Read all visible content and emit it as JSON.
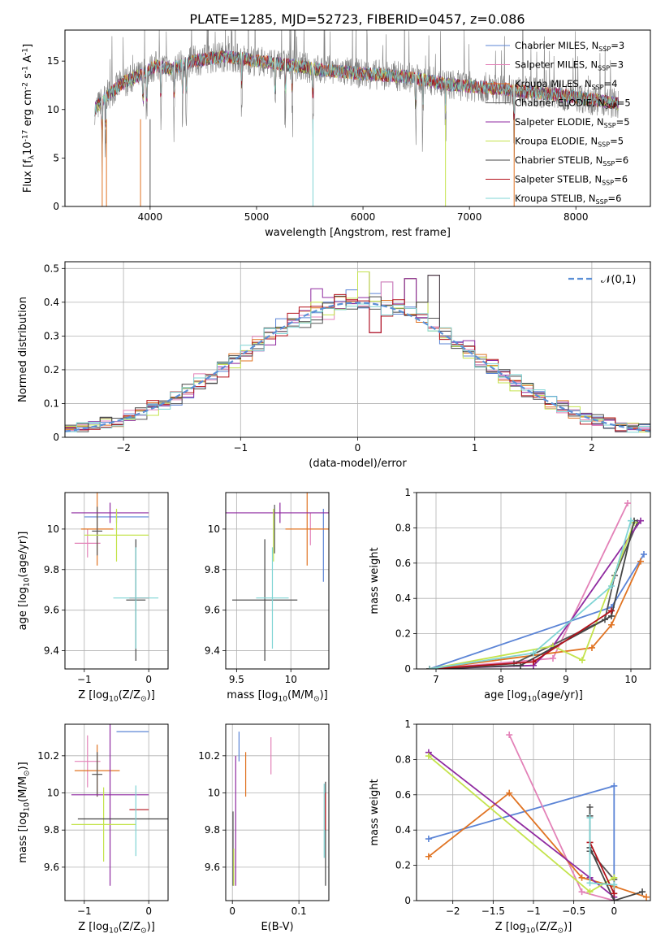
{
  "figure_title": "PLATE=1285, MJD=52723, FIBERID=0457, z=0.086",
  "models": [
    {
      "name": "Chabrier MILES, N$_{SSP}$=3",
      "color": "#5b84d6"
    },
    {
      "name": "Salpeter MILES, N$_{SSP}$=3",
      "color": "#e382b8"
    },
    {
      "name": "Kroupa MILES, N$_{SSP}$=4",
      "color": "#e07322"
    },
    {
      "name": "Chabrier ELODIE, N$_{SSP}$=5",
      "color": "#555555"
    },
    {
      "name": "Salpeter ELODIE, N$_{SSP}$=5",
      "color": "#8f2aa0"
    },
    {
      "name": "Kroupa ELODIE, N$_{SSP}$=5",
      "color": "#c4e34c"
    },
    {
      "name": "Chabrier STELIB, N$_{SSP}$=6",
      "color": "#444444"
    },
    {
      "name": "Salpeter STELIB, N$_{SSP}$=6",
      "color": "#b3121b"
    },
    {
      "name": "Kroupa STELIB, N$_{SSP}$=6",
      "color": "#7fd4d4"
    }
  ],
  "chart_data": [
    {
      "id": "spectrum",
      "type": "line",
      "xlabel": "wavelength [Angstrom, rest frame]",
      "ylabel": "Flux [f_λ10^{-17} erg cm^{-2} s^{-1} A^{-1}]",
      "xlim": [
        3200,
        8700
      ],
      "ylim": [
        0,
        18.2
      ],
      "xticks": [
        4000,
        5000,
        6000,
        7000,
        8000
      ],
      "yticks": [
        0,
        5,
        10,
        15
      ],
      "grid": false,
      "legend": "top-right",
      "data_color": "#808080",
      "continuum": {
        "x": [
          3480,
          3600,
          3750,
          3900,
          4050,
          4200,
          4400,
          4700,
          5000,
          5300,
          5600,
          6000,
          6400,
          6800,
          7200,
          7600,
          8000,
          8400
        ],
        "y": [
          10,
          11.5,
          12.8,
          13.5,
          14.5,
          14.2,
          15.0,
          15.5,
          15.0,
          14.6,
          14.1,
          13.7,
          13.4,
          12.6,
          12.2,
          11.8,
          11.3,
          10.6
        ]
      },
      "absorption_lines": [
        3550,
        3581,
        3934,
        3968,
        4102,
        4226,
        4304,
        4340,
        4861,
        5175,
        5270,
        5335,
        5530,
        6496,
        6563,
        6775,
        7420
      ]
    },
    {
      "id": "residuals",
      "type": "histogram",
      "xlabel": "(data-model)/error",
      "ylabel": "Normed distribution",
      "xlim": [
        -2.5,
        2.5
      ],
      "ylim": [
        0,
        0.52
      ],
      "xticks": [
        -2,
        -1,
        0,
        1,
        2
      ],
      "yticks": [
        0,
        0.1,
        0.2,
        0.3,
        0.4,
        0.5
      ],
      "grid": true,
      "legend": "top-right",
      "reference_label": "$\\mathcal{N}(0,1)$",
      "reference_color": "#5b8fd6",
      "bin_edges_start": -2.5,
      "bin_width": 0.1,
      "spikes": {
        "-0.4": 0.44,
        "0.0": 0.49,
        "0.1": 0.31,
        "0.2": 0.46,
        "0.4": 0.47,
        "0.5": 0.4,
        "0.6": 0.48
      }
    },
    {
      "id": "age-vs-Z",
      "type": "errorbar",
      "xlabel": "Z [log$_{10}$(Z/Z$_\\odot$)]",
      "ylabel": "age  [log$_{10}$(age/yr)]",
      "xlim": [
        -1.3,
        0.3
      ],
      "ylim": [
        9.31,
        10.18
      ],
      "xticks": [
        -1,
        0
      ],
      "yticks": [
        9.4,
        9.6,
        9.8,
        10.0
      ],
      "grid": true,
      "points": [
        {
          "model": 0,
          "x": -0.5,
          "xerr": 0.5,
          "y": 10.06,
          "yerr": 0.03
        },
        {
          "model": 1,
          "x": -0.95,
          "xerr": 0.2,
          "y": 9.93,
          "yerr": 0.07
        },
        {
          "model": 2,
          "x": -0.8,
          "xerr": 0.25,
          "y": 10.0,
          "yerr": 0.18
        },
        {
          "model": 3,
          "x": -0.8,
          "xerr": 0.08,
          "y": 9.99,
          "yerr": 0.12
        },
        {
          "model": 4,
          "x": -0.6,
          "xerr": 0.6,
          "y": 10.08,
          "yerr": 0.05
        },
        {
          "model": 5,
          "x": -0.5,
          "xerr": 0.5,
          "y": 9.97,
          "yerr": 0.13
        },
        {
          "model": 6,
          "x": -0.2,
          "xerr": 0.15,
          "y": 9.65,
          "yerr": 0.3
        },
        {
          "model": 7,
          "x": -0.15,
          "xerr": 0.15,
          "y": 9.66,
          "yerr": 0.0
        },
        {
          "model": 8,
          "x": -0.2,
          "xerr": 0.35,
          "y": 9.66,
          "yerr": 0.25
        }
      ]
    },
    {
      "id": "age-vs-mass",
      "type": "errorbar",
      "xlabel": "mass [log$_{10}$(M/M$_\\odot$)]",
      "ylabel": "",
      "xlim": [
        9.4,
        10.35
      ],
      "ylim": [
        9.31,
        10.18
      ],
      "xticks": [
        9.5,
        10.0
      ],
      "yticks": [
        9.4,
        9.6,
        9.8,
        10.0
      ],
      "grid": true,
      "points": [
        {
          "model": 0,
          "x": 10.3,
          "xerr": 0.0,
          "y": 9.92,
          "yerr": 0.18
        },
        {
          "model": 1,
          "x": 10.18,
          "xerr": 0.0,
          "y": 10.0,
          "yerr": 0.08
        },
        {
          "model": 2,
          "x": 10.15,
          "xerr": 0.2,
          "y": 10.0,
          "yerr": 0.18
        },
        {
          "model": 3,
          "x": 9.85,
          "xerr": 0.0,
          "y": 10.0,
          "yerr": 0.12
        },
        {
          "model": 4,
          "x": 9.9,
          "xerr": 0.5,
          "y": 10.08,
          "yerr": 0.05
        },
        {
          "model": 5,
          "x": 9.84,
          "xerr": 0.0,
          "y": 9.97,
          "yerr": 0.13
        },
        {
          "model": 6,
          "x": 9.76,
          "xerr": 0.3,
          "y": 9.65,
          "yerr": 0.3
        },
        {
          "model": 7,
          "x": 9.91,
          "xerr": 0.0,
          "y": 9.66,
          "yerr": 0.0
        },
        {
          "model": 8,
          "x": 9.83,
          "xerr": 0.15,
          "y": 9.66,
          "yerr": 0.25
        }
      ]
    },
    {
      "id": "weight-vs-age",
      "type": "line",
      "xlabel": "age  [log$_{10}$(age/yr)]",
      "ylabel": "mass weight",
      "xlim": [
        6.7,
        10.3
      ],
      "ylim": [
        0,
        1.0
      ],
      "xticks": [
        7,
        8,
        9,
        10
      ],
      "yticks": [
        0.0,
        0.2,
        0.4,
        0.6,
        0.8,
        1.0
      ],
      "grid": true,
      "series": [
        {
          "model": 0,
          "x": [
            6.9,
            9.7,
            10.2
          ],
          "y": [
            0.0,
            0.35,
            0.65
          ]
        },
        {
          "model": 1,
          "x": [
            6.9,
            8.8,
            9.95
          ],
          "y": [
            0.0,
            0.06,
            0.94
          ]
        },
        {
          "model": 2,
          "x": [
            6.9,
            9.4,
            9.7,
            10.15
          ],
          "y": [
            0.0,
            0.12,
            0.25,
            0.61
          ]
        },
        {
          "model": 3,
          "x": [
            6.9,
            8.2,
            9.6,
            9.75,
            10.1
          ],
          "y": [
            0.0,
            0.03,
            0.28,
            0.53,
            0.83
          ]
        },
        {
          "model": 4,
          "x": [
            6.9,
            8.5,
            8.8,
            10.15
          ],
          "y": [
            0.0,
            0.02,
            0.13,
            0.84
          ]
        },
        {
          "model": 5,
          "x": [
            6.9,
            8.8,
            9.25,
            10.05
          ],
          "y": [
            0.0,
            0.13,
            0.05,
            0.83
          ]
        },
        {
          "model": 6,
          "x": [
            6.9,
            8.3,
            9.7,
            10.05
          ],
          "y": [
            0.0,
            0.02,
            0.3,
            0.84
          ]
        },
        {
          "model": 7,
          "x": [
            6.9,
            8.5,
            9.7
          ],
          "y": [
            0.0,
            0.04,
            0.33
          ]
        },
        {
          "model": 8,
          "x": [
            6.9,
            8.5,
            9.7,
            10.0
          ],
          "y": [
            0.0,
            0.09,
            0.47,
            0.84
          ]
        }
      ]
    },
    {
      "id": "mass-vs-Z",
      "type": "errorbar",
      "xlabel": "Z [log$_{10}$(Z/Z$_\\odot$)]",
      "ylabel": "mass [log$_{10}$(M/M$_\\odot$)]",
      "xlim": [
        -1.3,
        0.3
      ],
      "ylim": [
        9.42,
        10.37
      ],
      "xticks": [
        -1,
        0
      ],
      "yticks": [
        9.6,
        9.8,
        10.0,
        10.2
      ],
      "grid": true,
      "points": [
        {
          "model": 0,
          "x": -0.25,
          "xerr": 0.25,
          "y": 10.33,
          "yerr": 0.0
        },
        {
          "model": 1,
          "x": -0.95,
          "xerr": 0.2,
          "y": 10.17,
          "yerr": 0.14
        },
        {
          "model": 2,
          "x": -0.8,
          "xerr": 0.35,
          "y": 10.12,
          "yerr": 0.14
        },
        {
          "model": 3,
          "x": -0.8,
          "xerr": 0.08,
          "y": 10.1,
          "yerr": 0.12
        },
        {
          "model": 4,
          "x": -0.6,
          "xerr": 0.6,
          "y": 9.99,
          "yerr": 0.49
        },
        {
          "model": 5,
          "x": -0.7,
          "xerr": 0.5,
          "y": 9.83,
          "yerr": 0.2
        },
        {
          "model": 6,
          "x": -0.35,
          "xerr": 0.75,
          "y": 9.86,
          "yerr": 0.0
        },
        {
          "model": 7,
          "x": -0.15,
          "xerr": 0.15,
          "y": 9.91,
          "yerr": 0.0
        },
        {
          "model": 8,
          "x": -0.2,
          "xerr": 0.0,
          "y": 9.85,
          "yerr": 0.19
        }
      ]
    },
    {
      "id": "mass-vs-EBV",
      "type": "errorbar",
      "xlabel": "E(B-V)",
      "ylabel": "",
      "xlim": [
        -0.01,
        0.145
      ],
      "ylim": [
        9.42,
        10.37
      ],
      "xticks": [
        0.0,
        0.1
      ],
      "yticks": [
        9.6,
        9.8,
        10.0,
        10.2
      ],
      "grid": true,
      "points": [
        {
          "model": 0,
          "x": 0.01,
          "xerr": 0.0,
          "y": 10.25,
          "yerr": 0.08
        },
        {
          "model": 1,
          "x": 0.058,
          "xerr": 0.0,
          "y": 10.2,
          "yerr": 0.1
        },
        {
          "model": 2,
          "x": 0.02,
          "xerr": 0.0,
          "y": 10.1,
          "yerr": 0.12
        },
        {
          "model": 3,
          "x": 0.001,
          "xerr": 0.0,
          "y": 9.7,
          "yerr": 0.2
        },
        {
          "model": 4,
          "x": 0.005,
          "xerr": 0.0,
          "y": 9.85,
          "yerr": 0.35
        },
        {
          "model": 5,
          "x": 0.002,
          "xerr": 0.0,
          "y": 9.6,
          "yerr": 0.1
        },
        {
          "model": 6,
          "x": 0.14,
          "xerr": 0.0,
          "y": 9.78,
          "yerr": 0.28
        },
        {
          "model": 7,
          "x": 0.14,
          "xerr": 0.0,
          "y": 9.9,
          "yerr": 0.1
        },
        {
          "model": 8,
          "x": 0.138,
          "xerr": 0.0,
          "y": 9.85,
          "yerr": 0.2
        }
      ]
    },
    {
      "id": "weight-vs-Z",
      "type": "line",
      "xlabel": "Z [log$_{10}$(Z/Z$_\\odot$)]",
      "ylabel": "mass weight",
      "xlim": [
        -2.45,
        0.45
      ],
      "ylim": [
        0,
        1.0
      ],
      "xticks": [
        -2.0,
        -1.5,
        -1.0,
        -0.5,
        0.0
      ],
      "yticks": [
        0.0,
        0.2,
        0.4,
        0.6,
        0.8,
        1.0
      ],
      "grid": true,
      "series": [
        {
          "model": 0,
          "x": [
            -2.3,
            0.0,
            0.0
          ],
          "y": [
            0.35,
            0.65,
            0.0
          ]
        },
        {
          "model": 1,
          "x": [
            -1.3,
            -0.4,
            0.0
          ],
          "y": [
            0.94,
            0.05,
            0.0
          ]
        },
        {
          "model": 2,
          "x": [
            -2.3,
            -1.3,
            -0.4,
            0.0,
            0.4
          ],
          "y": [
            0.25,
            0.61,
            0.13,
            0.08,
            0.02
          ]
        },
        {
          "model": 3,
          "x": [
            -0.3,
            -0.3,
            -0.3,
            0.0
          ],
          "y": [
            0.53,
            0.48,
            0.28,
            0.12
          ]
        },
        {
          "model": 4,
          "x": [
            -2.3,
            -0.3,
            0.0,
            0.0
          ],
          "y": [
            0.84,
            0.13,
            0.02,
            0.0
          ]
        },
        {
          "model": 5,
          "x": [
            -2.3,
            -0.3,
            0.0
          ],
          "y": [
            0.82,
            0.05,
            0.13
          ]
        },
        {
          "model": 6,
          "x": [
            -0.3,
            0.0,
            0.35
          ],
          "y": [
            0.3,
            0.0,
            0.05
          ]
        },
        {
          "model": 7,
          "x": [
            -0.3,
            0.0
          ],
          "y": [
            0.33,
            0.04
          ]
        },
        {
          "model": 8,
          "x": [
            -0.3,
            -0.3,
            0.0
          ],
          "y": [
            0.47,
            0.1,
            0.09
          ]
        }
      ]
    }
  ]
}
